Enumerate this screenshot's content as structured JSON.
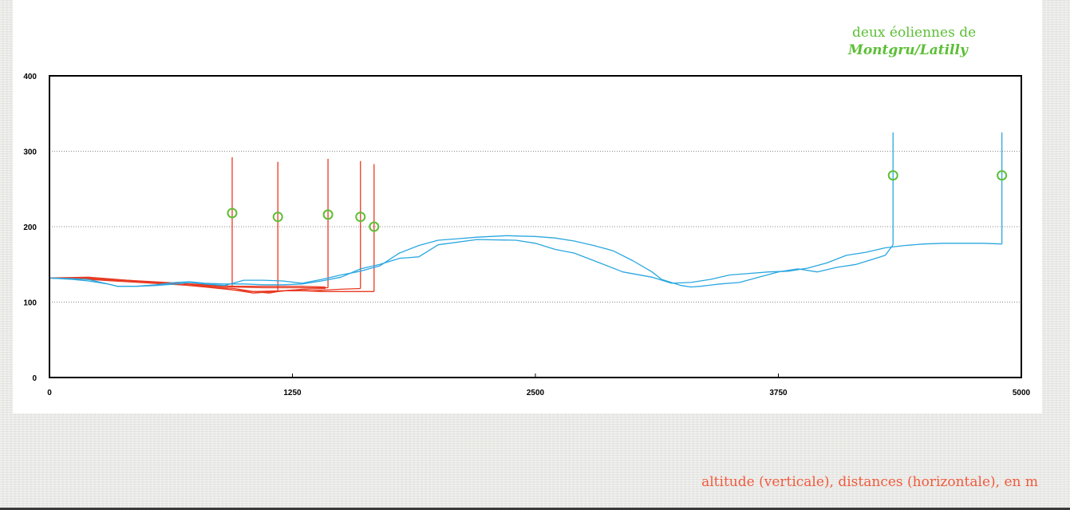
{
  "annotation": {
    "line1": "deux éoliennes de",
    "line2": "Montgru/Latilly"
  },
  "caption": "altitude (verticale), distances (horizontale), en m",
  "colors": {
    "red_profiles": "#e83a22",
    "blue_profiles": "#2aa7e0",
    "markers": "#5cbf36",
    "caption": "#f05a3c"
  },
  "chart_data": {
    "type": "line",
    "title": "",
    "xlabel": "",
    "ylabel": "",
    "xlim": [
      0,
      5000
    ],
    "ylim": [
      0,
      400
    ],
    "x_ticks": [
      0,
      1250,
      2500,
      3750,
      5000
    ],
    "y_ticks": [
      0,
      100,
      200,
      300,
      400
    ],
    "x_tick_labels": [
      "0",
      "1250",
      "2500",
      "3750",
      "5000"
    ],
    "y_tick_labels": [
      "0",
      "100",
      "200",
      "300",
      "400"
    ],
    "grid": "horizontal dotted",
    "legend": "none",
    "series": [
      {
        "color": "red",
        "points": [
          [
            0,
            132
          ],
          [
            200,
            131
          ],
          [
            400,
            129
          ],
          [
            600,
            126
          ],
          [
            800,
            123
          ],
          [
            940,
            121
          ],
          [
            1100,
            121
          ],
          [
            1200,
            121
          ],
          [
            1300,
            121
          ],
          [
            1420,
            120
          ],
          [
            1420,
            120
          ]
        ],
        "mast": {
          "x": 940,
          "base": 121,
          "top": 292
        },
        "marker": {
          "x": 940,
          "y": 218
        }
      },
      {
        "color": "red",
        "points": [
          [
            0,
            132
          ],
          [
            200,
            132
          ],
          [
            400,
            128
          ],
          [
            600,
            125
          ],
          [
            800,
            121
          ],
          [
            950,
            118
          ],
          [
            1050,
            114
          ],
          [
            1130,
            112
          ],
          [
            1175,
            114
          ],
          [
            1300,
            117
          ],
          [
            1420,
            118
          ]
        ],
        "mast": {
          "x": 1175,
          "base": 114,
          "top": 286
        },
        "marker": {
          "x": 1175,
          "y": 213
        }
      },
      {
        "color": "red",
        "points": [
          [
            0,
            132
          ],
          [
            200,
            130
          ],
          [
            400,
            127
          ],
          [
            600,
            124
          ],
          [
            800,
            122
          ],
          [
            950,
            120
          ],
          [
            1100,
            119
          ],
          [
            1200,
            119
          ],
          [
            1300,
            119
          ],
          [
            1400,
            119
          ],
          [
            1433,
            119
          ]
        ],
        "mast": {
          "x": 1433,
          "base": 119,
          "top": 290
        },
        "marker": {
          "x": 1433,
          "y": 216
        }
      },
      {
        "color": "red",
        "points": [
          [
            0,
            132
          ],
          [
            200,
            131
          ],
          [
            400,
            128
          ],
          [
            600,
            124
          ],
          [
            800,
            121
          ],
          [
            950,
            116
          ],
          [
            1050,
            112
          ],
          [
            1150,
            114
          ],
          [
            1250,
            116
          ],
          [
            1350,
            115
          ],
          [
            1500,
            117
          ],
          [
            1600,
            118
          ]
        ],
        "mast": {
          "x": 1600,
          "base": 118,
          "top": 287
        },
        "marker": {
          "x": 1600,
          "y": 213
        }
      },
      {
        "color": "red",
        "points": [
          [
            0,
            132
          ],
          [
            200,
            133
          ],
          [
            400,
            129
          ],
          [
            600,
            125
          ],
          [
            800,
            120
          ],
          [
            950,
            116
          ],
          [
            1050,
            114
          ],
          [
            1200,
            115
          ],
          [
            1300,
            115
          ],
          [
            1400,
            114
          ],
          [
            1500,
            114
          ],
          [
            1600,
            114
          ],
          [
            1670,
            114
          ]
        ],
        "mast": {
          "x": 1670,
          "base": 114,
          "top": 283
        },
        "marker": {
          "x": 1670,
          "y": 200
        }
      },
      {
        "color": "blue",
        "points": [
          [
            0,
            132
          ],
          [
            120,
            130
          ],
          [
            200,
            128
          ],
          [
            300,
            124
          ],
          [
            350,
            121
          ],
          [
            450,
            121
          ],
          [
            550,
            123
          ],
          [
            650,
            126
          ],
          [
            720,
            127
          ],
          [
            800,
            125
          ],
          [
            900,
            124
          ],
          [
            1000,
            124
          ],
          [
            1100,
            123
          ],
          [
            1200,
            123
          ],
          [
            1300,
            124
          ],
          [
            1400,
            128
          ],
          [
            1500,
            133
          ],
          [
            1600,
            144
          ],
          [
            1700,
            150
          ],
          [
            1800,
            158
          ],
          [
            1900,
            160
          ],
          [
            2000,
            176
          ],
          [
            2200,
            183
          ],
          [
            2400,
            182
          ],
          [
            2500,
            178
          ],
          [
            2600,
            170
          ],
          [
            2700,
            165
          ],
          [
            2800,
            155
          ],
          [
            2950,
            140
          ],
          [
            3100,
            133
          ],
          [
            3200,
            125
          ],
          [
            3300,
            126
          ],
          [
            3400,
            130
          ],
          [
            3500,
            136
          ],
          [
            3600,
            138
          ],
          [
            3700,
            140
          ],
          [
            3800,
            141
          ],
          [
            3900,
            145
          ],
          [
            4000,
            152
          ],
          [
            4100,
            162
          ],
          [
            4200,
            166
          ],
          [
            4300,
            172
          ],
          [
            4400,
            175
          ],
          [
            4500,
            177
          ],
          [
            4600,
            178
          ],
          [
            4700,
            178
          ],
          [
            4800,
            178
          ],
          [
            4900,
            177
          ]
        ],
        "mast": {
          "x": 4900,
          "base": 177,
          "top": 325
        },
        "marker": {
          "x": 4900,
          "y": 268
        }
      },
      {
        "color": "blue",
        "points": [
          [
            0,
            132
          ],
          [
            120,
            131
          ],
          [
            200,
            130
          ],
          [
            300,
            124
          ],
          [
            350,
            121
          ],
          [
            450,
            121
          ],
          [
            550,
            122
          ],
          [
            650,
            124
          ],
          [
            720,
            126
          ],
          [
            800,
            124
          ],
          [
            900,
            122
          ],
          [
            1000,
            129
          ],
          [
            1100,
            129
          ],
          [
            1200,
            128
          ],
          [
            1300,
            125
          ],
          [
            1400,
            130
          ],
          [
            1500,
            136
          ],
          [
            1600,
            141
          ],
          [
            1700,
            148
          ],
          [
            1800,
            165
          ],
          [
            1900,
            175
          ],
          [
            2000,
            182
          ],
          [
            2100,
            184
          ],
          [
            2200,
            186
          ],
          [
            2350,
            188
          ],
          [
            2500,
            187
          ],
          [
            2600,
            185
          ],
          [
            2700,
            181
          ],
          [
            2800,
            175
          ],
          [
            2900,
            168
          ],
          [
            3000,
            155
          ],
          [
            3100,
            140
          ],
          [
            3150,
            130
          ],
          [
            3250,
            122
          ],
          [
            3300,
            120
          ],
          [
            3350,
            121
          ],
          [
            3450,
            124
          ],
          [
            3550,
            126
          ],
          [
            3650,
            133
          ],
          [
            3750,
            140
          ],
          [
            3850,
            144
          ],
          [
            3950,
            140
          ],
          [
            4050,
            146
          ],
          [
            4150,
            150
          ],
          [
            4250,
            158
          ],
          [
            4300,
            162
          ],
          [
            4340,
            176
          ]
        ],
        "mast": {
          "x": 4340,
          "base": 176,
          "top": 325
        },
        "marker": {
          "x": 4340,
          "y": 268
        }
      }
    ]
  }
}
